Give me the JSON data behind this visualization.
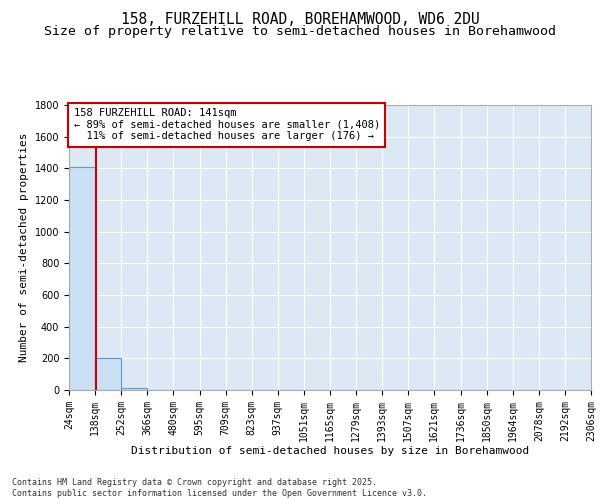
{
  "title": "158, FURZEHILL ROAD, BOREHAMWOOD, WD6 2DU",
  "subtitle": "Size of property relative to semi-detached houses in Borehamwood",
  "xlabel": "Distribution of semi-detached houses by size in Borehamwood",
  "ylabel": "Number of semi-detached properties",
  "bin_edges": [
    24,
    138,
    252,
    366,
    480,
    595,
    709,
    823,
    937,
    1051,
    1165,
    1279,
    1393,
    1507,
    1621,
    1736,
    1850,
    1964,
    2078,
    2192,
    2306
  ],
  "bin_counts": [
    1408,
    200,
    10,
    2,
    1,
    1,
    0,
    0,
    0,
    0,
    0,
    0,
    0,
    0,
    0,
    0,
    0,
    0,
    0,
    0
  ],
  "bar_facecolor": "#cce0f5",
  "bar_edgecolor": "#5b9bd5",
  "property_value": 141,
  "annotation_line1": "158 FURZEHILL ROAD: 141sqm",
  "annotation_line2": "← 89% of semi-detached houses are smaller (1,408)",
  "annotation_line3": "  11% of semi-detached houses are larger (176) →",
  "vline_color": "#cc0000",
  "annotation_box_color": "#cc0000",
  "ylim": [
    0,
    1800
  ],
  "yticks": [
    0,
    200,
    400,
    600,
    800,
    1000,
    1200,
    1400,
    1600,
    1800
  ],
  "grid_color": "#ffffff",
  "bg_color": "#dce9f5",
  "fig_bg_color": "#ffffff",
  "footer": "Contains HM Land Registry data © Crown copyright and database right 2025.\nContains public sector information licensed under the Open Government Licence v3.0.",
  "title_fontsize": 10.5,
  "subtitle_fontsize": 9.5,
  "tick_fontsize": 7,
  "ylabel_fontsize": 8,
  "xlabel_fontsize": 8
}
